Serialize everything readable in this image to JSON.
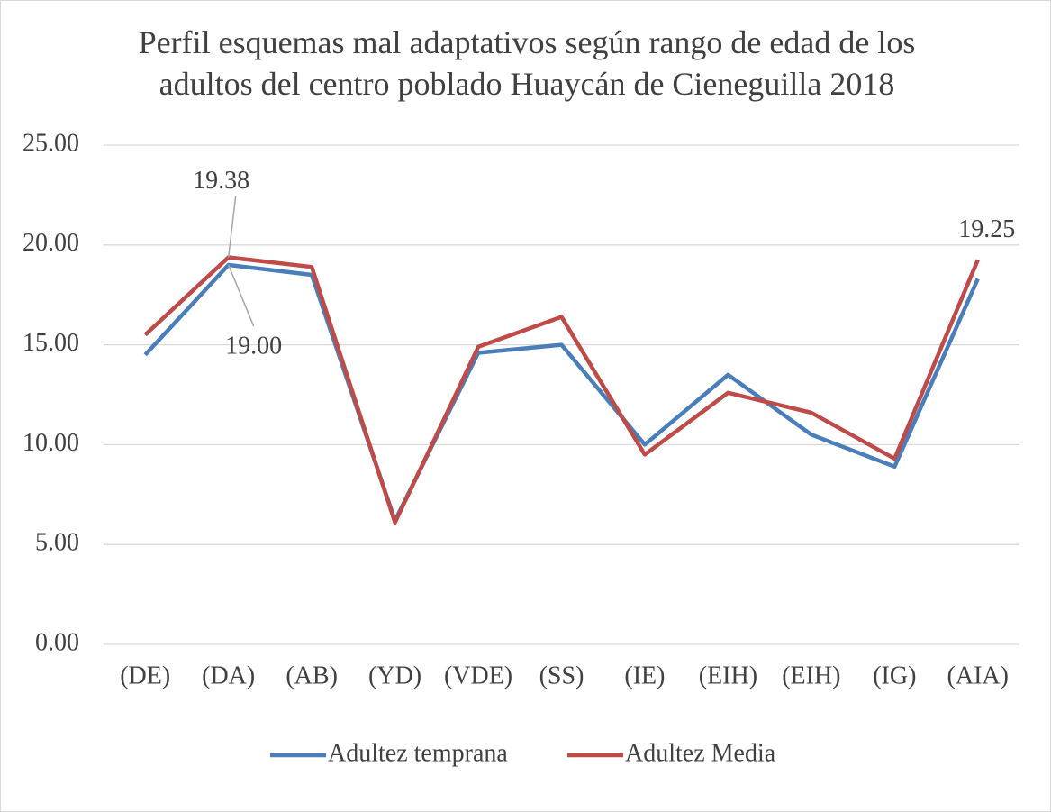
{
  "chart_data": {
    "type": "line",
    "title": "Perfil esquemas mal adaptativos según rango de edad de los adultos del centro poblado Huaycán de Cieneguilla 2018",
    "categories": [
      "(DE)",
      "(DA)",
      "(AB)",
      "(YD)",
      "(VDE)",
      "(SS)",
      "(IE)",
      "(EIH)",
      "(EIH)",
      "(IG)",
      "(AIA)"
    ],
    "series": [
      {
        "name": "Adultez temprana",
        "color": "#4a7ebb",
        "values": [
          14.5,
          19.0,
          18.5,
          6.2,
          14.6,
          15.0,
          10.0,
          13.5,
          10.5,
          8.9,
          18.3
        ],
        "value_labels": [
          null,
          "19.00",
          null,
          null,
          null,
          null,
          null,
          null,
          null,
          null,
          null
        ]
      },
      {
        "name": "Adultez Media",
        "color": "#be4b48",
        "values": [
          15.5,
          19.38,
          18.9,
          6.1,
          14.9,
          16.4,
          9.5,
          12.6,
          11.6,
          9.3,
          19.25
        ],
        "value_labels": [
          null,
          "19.38",
          null,
          null,
          null,
          null,
          null,
          null,
          null,
          null,
          "19.25"
        ]
      }
    ],
    "ylim": [
      0,
      25
    ],
    "yticks": [
      {
        "value": 0,
        "label": "0.00"
      },
      {
        "value": 5,
        "label": "5.00"
      },
      {
        "value": 10,
        "label": "10.00"
      },
      {
        "value": 15,
        "label": "15.00"
      },
      {
        "value": 20,
        "label": "20.00"
      },
      {
        "value": 25,
        "label": "25.00"
      }
    ],
    "grid": true,
    "legend": "bottom"
  }
}
